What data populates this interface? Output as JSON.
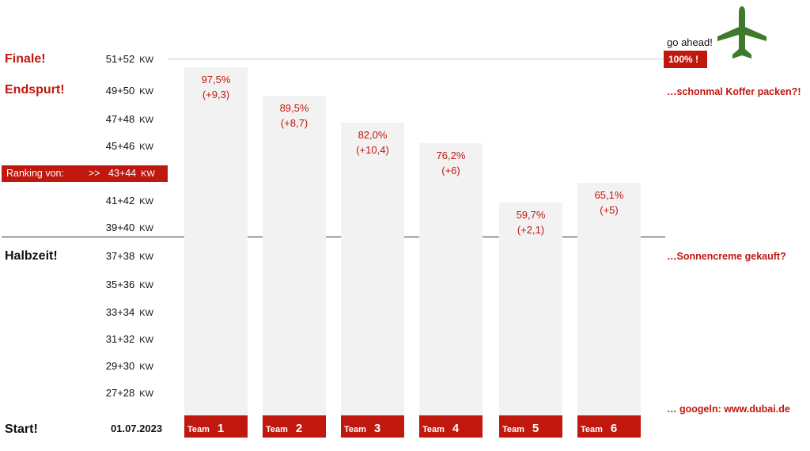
{
  "left_labels": {
    "finale": "Finale!",
    "endspurt": "Endspurt!",
    "halbzeit": "Halbzeit!",
    "start": "Start!"
  },
  "ranking": {
    "label": "Ranking von:",
    "arrows": ">>",
    "week": "43+44",
    "unit": "KW"
  },
  "start_date": "01.07.2023",
  "right_notes": {
    "go_ahead": "go ahead!",
    "hundred": "100% !",
    "koffer": "…schonmal Koffer packen?!",
    "sonnencreme": "…Sonnencreme gekauft?",
    "googeln": "… googeln:  www.dubai.de"
  },
  "icons": {
    "plane": "airplane-icon",
    "plane_color": "#3f7a2c"
  },
  "colors": {
    "accent": "#c0170f",
    "bar": "#f2f2f2",
    "line": "#b8d0e0"
  },
  "chart_data": {
    "type": "bar",
    "y_unit": "KW",
    "y_ticks": [
      "27+28",
      "29+30",
      "31+32",
      "33+34",
      "35+36",
      "37+38",
      "39+40",
      "41+42",
      "43+44",
      "45+46",
      "47+48",
      "49+50",
      "51+52"
    ],
    "ylim": [
      0,
      100
    ],
    "categories": [
      {
        "prefix": "Team",
        "number": "1"
      },
      {
        "prefix": "Team",
        "number": "2"
      },
      {
        "prefix": "Team",
        "number": "3"
      },
      {
        "prefix": "Team",
        "number": "4"
      },
      {
        "prefix": "Team",
        "number": "5"
      },
      {
        "prefix": "Team",
        "number": "6"
      }
    ],
    "values": [
      97.5,
      89.5,
      82.0,
      76.2,
      59.7,
      65.1
    ],
    "value_labels": [
      "97,5%",
      "89,5%",
      "82,0%",
      "76,2%",
      "59,7%",
      "65,1%"
    ],
    "delta_labels": [
      "(+9,3)",
      "(+8,7)",
      "(+10,4)",
      "(+6)",
      "(+2,1)",
      "(+5)"
    ],
    "halftime_line": 50,
    "goal_line": 100
  }
}
